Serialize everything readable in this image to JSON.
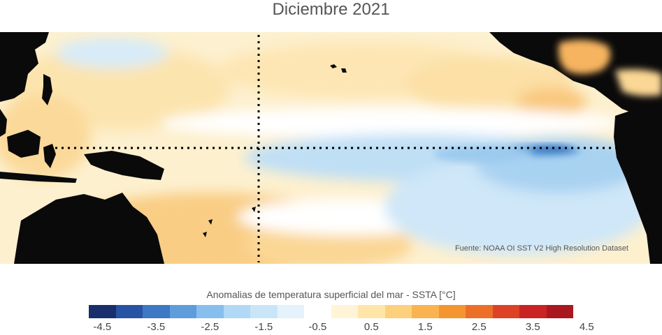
{
  "map": {
    "title": "Diciembre 2021",
    "source_note": "Fuente: NOAA OI SST V2 High Resolution Dataset",
    "colorbar": {
      "label": "Anomalias de temperatura superficial del mar - SSTA  [°C]",
      "ticks": [
        "-4.5",
        "-3.5",
        "-2.5",
        "-1.5",
        "-0.5",
        "0.5",
        "1.5",
        "2.5",
        "3.5",
        "4.5"
      ],
      "colors": [
        "#1a2e6b",
        "#2653a3",
        "#3c78c4",
        "#5e9ddb",
        "#86bfee",
        "#b1d8f5",
        "#cbe5f8",
        "#e4f3fb",
        "#ffffff",
        "#fff4d6",
        "#ffe6a8",
        "#fcd07c",
        "#f9b350",
        "#f49530",
        "#ec6f28",
        "#dd4126",
        "#c92323",
        "#a8181e"
      ]
    },
    "colors": {
      "land": "#0a0a0a",
      "cold_anomaly": "#a8d3f2",
      "strong_cold_anomaly": "#2f6db7",
      "warm_anomaly": "#fbdfa4",
      "strong_warm_anomaly": "#f5a84a"
    }
  }
}
